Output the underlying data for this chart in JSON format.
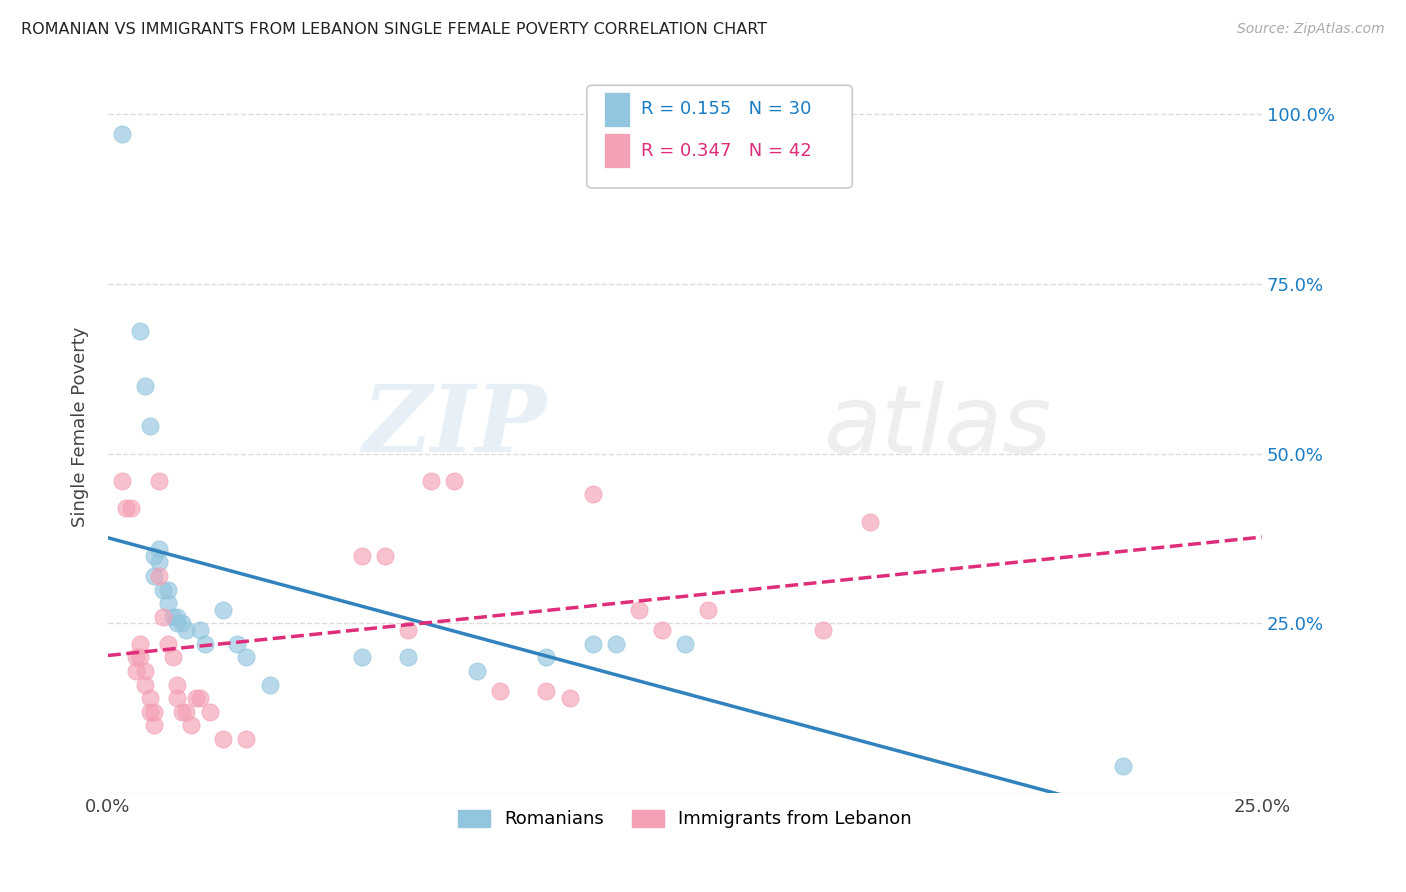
{
  "title": "ROMANIAN VS IMMIGRANTS FROM LEBANON SINGLE FEMALE POVERTY CORRELATION CHART",
  "source": "Source: ZipAtlas.com",
  "ylabel": "Single Female Poverty",
  "xlim": [
    0.0,
    0.25
  ],
  "ylim": [
    0.0,
    1.05
  ],
  "ytick_values": [
    0.0,
    0.25,
    0.5,
    0.75,
    1.0
  ],
  "xtick_values": [
    0.0,
    0.05,
    0.1,
    0.15,
    0.2,
    0.25
  ],
  "legend_blue_label": "Romanians",
  "legend_pink_label": "Immigrants from Lebanon",
  "r_blue": "0.155",
  "n_blue": "30",
  "r_pink": "0.347",
  "n_pink": "42",
  "blue_color": "#92c5de",
  "pink_color": "#f4a0b5",
  "trendline_blue_color": "#3182bd",
  "trendline_pink_color": "#de2d7a",
  "blue_scatter": [
    [
      0.003,
      0.97
    ],
    [
      0.007,
      0.68
    ],
    [
      0.008,
      0.6
    ],
    [
      0.009,
      0.54
    ],
    [
      0.01,
      0.35
    ],
    [
      0.01,
      0.32
    ],
    [
      0.011,
      0.36
    ],
    [
      0.011,
      0.34
    ],
    [
      0.012,
      0.3
    ],
    [
      0.013,
      0.3
    ],
    [
      0.013,
      0.28
    ],
    [
      0.014,
      0.26
    ],
    [
      0.015,
      0.26
    ],
    [
      0.015,
      0.25
    ],
    [
      0.016,
      0.25
    ],
    [
      0.017,
      0.24
    ],
    [
      0.02,
      0.24
    ],
    [
      0.021,
      0.22
    ],
    [
      0.025,
      0.27
    ],
    [
      0.028,
      0.22
    ],
    [
      0.03,
      0.2
    ],
    [
      0.035,
      0.16
    ],
    [
      0.055,
      0.2
    ],
    [
      0.065,
      0.2
    ],
    [
      0.08,
      0.18
    ],
    [
      0.095,
      0.2
    ],
    [
      0.105,
      0.22
    ],
    [
      0.11,
      0.22
    ],
    [
      0.125,
      0.22
    ],
    [
      0.22,
      0.04
    ]
  ],
  "pink_scatter": [
    [
      0.003,
      0.46
    ],
    [
      0.004,
      0.42
    ],
    [
      0.005,
      0.42
    ],
    [
      0.006,
      0.2
    ],
    [
      0.006,
      0.18
    ],
    [
      0.007,
      0.22
    ],
    [
      0.007,
      0.2
    ],
    [
      0.008,
      0.18
    ],
    [
      0.008,
      0.16
    ],
    [
      0.009,
      0.14
    ],
    [
      0.009,
      0.12
    ],
    [
      0.01,
      0.12
    ],
    [
      0.01,
      0.1
    ],
    [
      0.011,
      0.46
    ],
    [
      0.011,
      0.32
    ],
    [
      0.012,
      0.26
    ],
    [
      0.013,
      0.22
    ],
    [
      0.014,
      0.2
    ],
    [
      0.015,
      0.16
    ],
    [
      0.015,
      0.14
    ],
    [
      0.016,
      0.12
    ],
    [
      0.017,
      0.12
    ],
    [
      0.018,
      0.1
    ],
    [
      0.019,
      0.14
    ],
    [
      0.02,
      0.14
    ],
    [
      0.022,
      0.12
    ],
    [
      0.025,
      0.08
    ],
    [
      0.03,
      0.08
    ],
    [
      0.055,
      0.35
    ],
    [
      0.06,
      0.35
    ],
    [
      0.065,
      0.24
    ],
    [
      0.07,
      0.46
    ],
    [
      0.075,
      0.46
    ],
    [
      0.085,
      0.15
    ],
    [
      0.095,
      0.15
    ],
    [
      0.1,
      0.14
    ],
    [
      0.105,
      0.44
    ],
    [
      0.115,
      0.27
    ],
    [
      0.12,
      0.24
    ],
    [
      0.13,
      0.27
    ],
    [
      0.155,
      0.24
    ],
    [
      0.165,
      0.4
    ]
  ],
  "watermark_zip": "ZIP",
  "watermark_atlas": "atlas",
  "background_color": "#ffffff",
  "grid_color": "#cccccc"
}
